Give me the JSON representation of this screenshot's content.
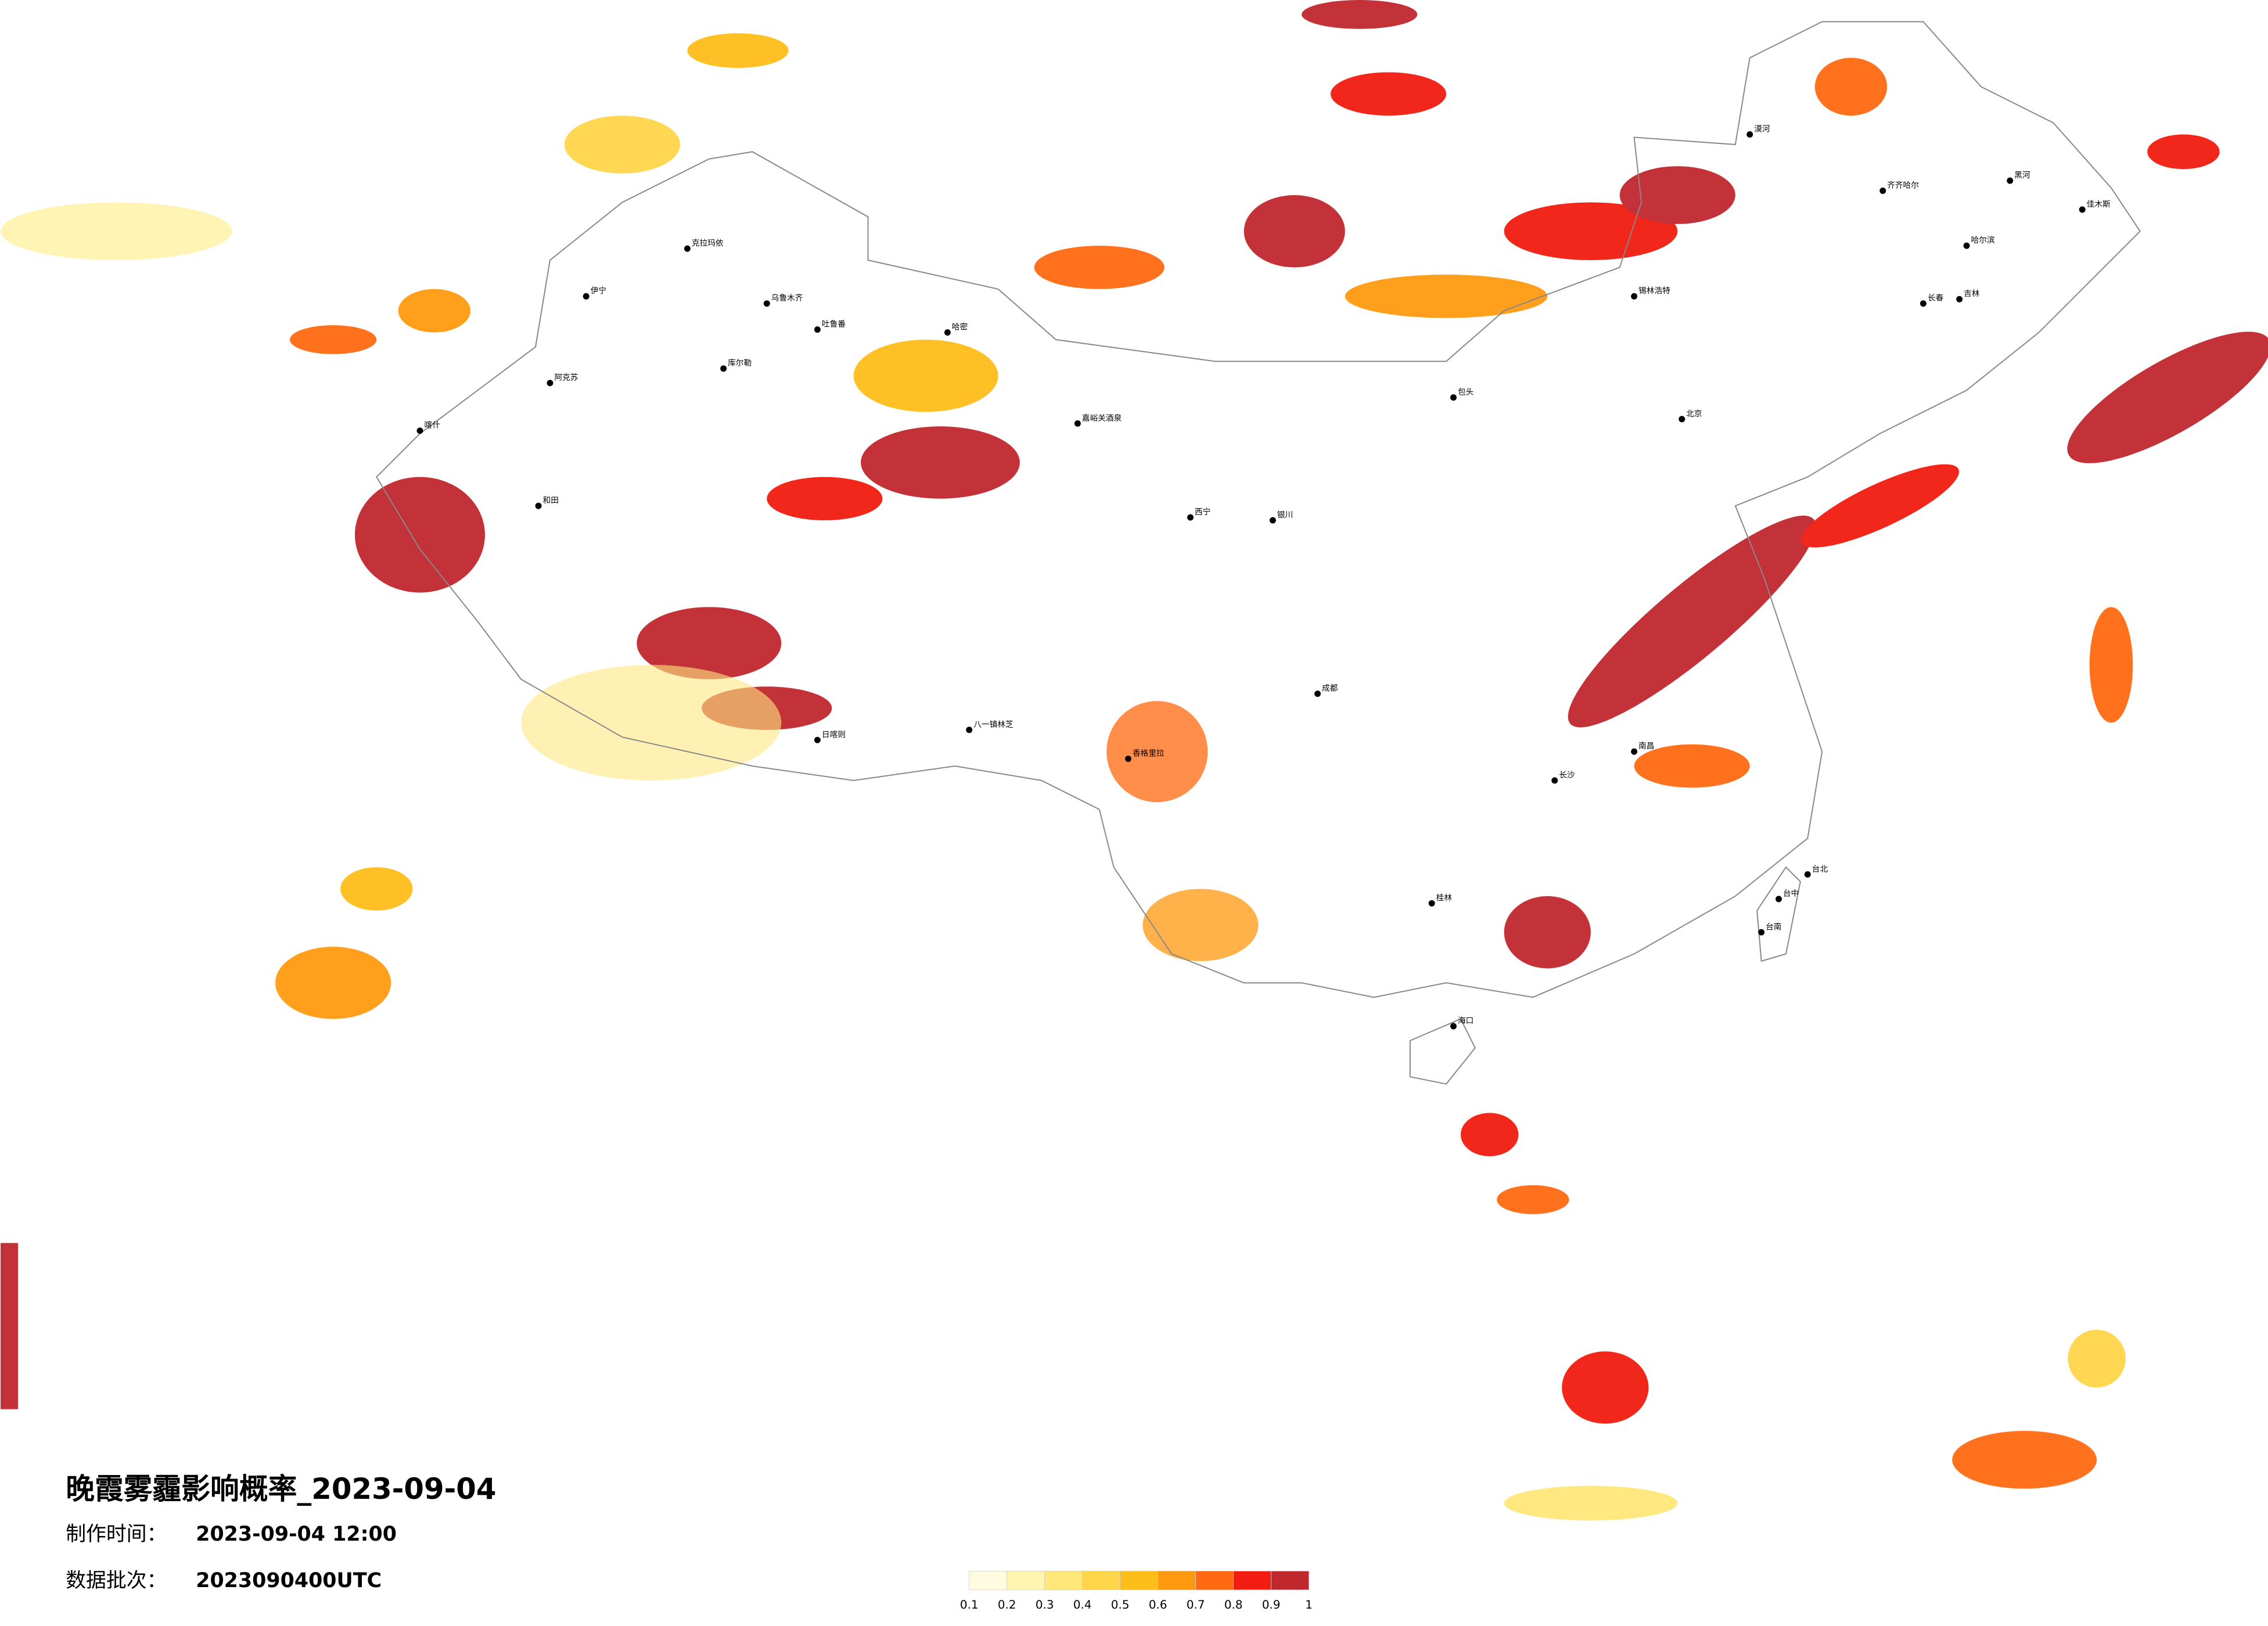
{
  "title": "晚霞雾霾影响概率_2023-09-04",
  "produced": {
    "label": "制作时间：",
    "value": "2023-09-04 12:00"
  },
  "batch": {
    "label": "数据批次：",
    "value": "2023090400UTC"
  },
  "legend": {
    "ticks": [
      0.1,
      0.2,
      0.3,
      0.4,
      0.5,
      0.6,
      0.7,
      0.8,
      0.9,
      1
    ],
    "colors": [
      "#fffbe0",
      "#fff4b0",
      "#ffe77a",
      "#ffd54a",
      "#ffbd1a",
      "#ff9a10",
      "#ff6a10",
      "#f21c10",
      "#c0282e"
    ]
  },
  "cities": [
    "克拉玛依",
    "乌鲁木齐",
    "吐鲁番",
    "伊宁",
    "阿克苏",
    "库尔勒",
    "和田",
    "哈密",
    "喀什",
    "嘉峪关酒泉",
    "日喀则",
    "八一镇林芝",
    "包头",
    "北京",
    "锡林浩特",
    "齐齐哈尔",
    "哈尔滨",
    "长春",
    "吉林",
    "佳木斯",
    "成都",
    "台北",
    "台中",
    "台南",
    "海口",
    "桂林",
    "长沙",
    "南昌",
    "银川",
    "西宁",
    "香格里拉",
    "黑河",
    "漠河"
  ]
}
